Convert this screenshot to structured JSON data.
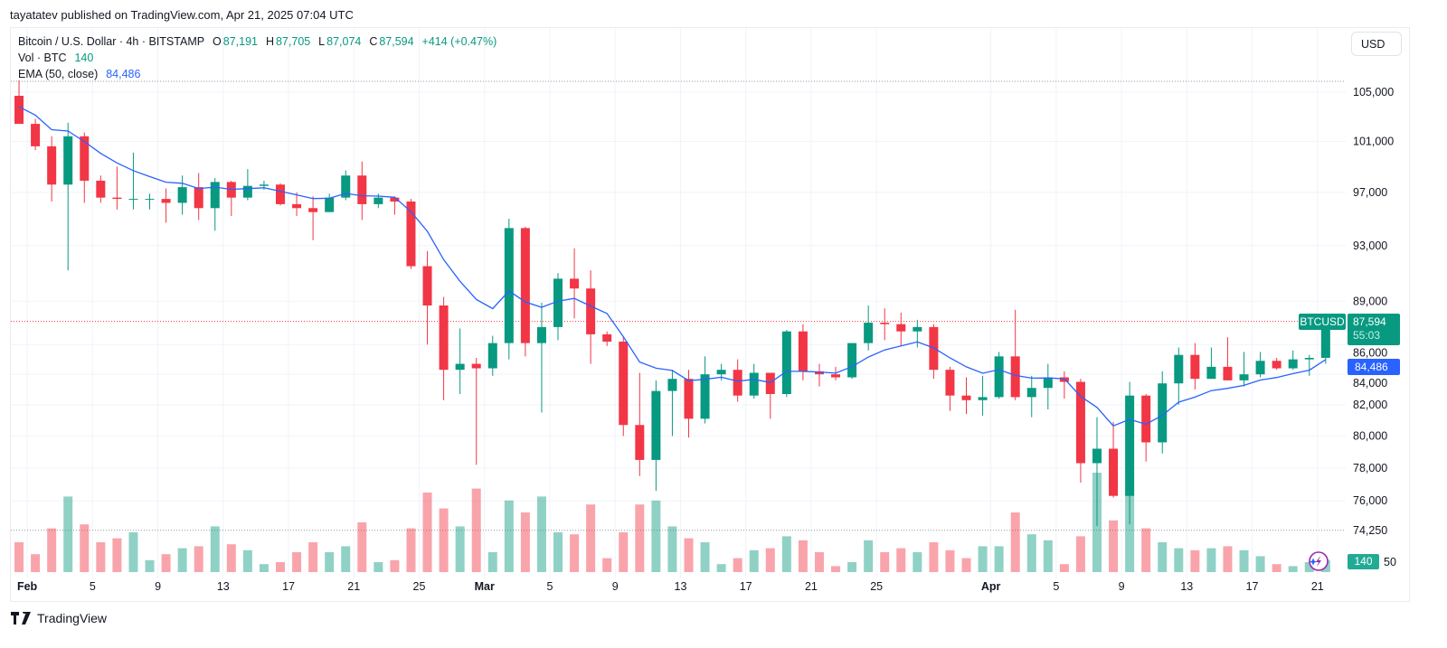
{
  "header": {
    "published": "tayatatev published on TradingView.com, Apr 21, 2025 07:04 UTC"
  },
  "legend": {
    "symbol": "Bitcoin / U.S. Dollar · 4h · BITSTAMP",
    "o_label": "O",
    "o": "87,191",
    "h_label": "H",
    "h": "87,705",
    "l_label": "L",
    "l": "87,074",
    "c_label": "C",
    "c": "87,594",
    "change": "+414 (+0.47%)",
    "vol_label": "Vol · BTC",
    "vol": "140",
    "ema_label": "EMA (50, close)",
    "ema": "84,486"
  },
  "currency_button": "USD",
  "tags": {
    "symbol": "BTCUSD",
    "last_price": "87,594",
    "countdown": "55:03",
    "ema": "84,486",
    "volume": "140"
  },
  "footer": {
    "brand": "TradingView"
  },
  "colors": {
    "up": "#089981",
    "down": "#f23645",
    "ema": "#2962ff",
    "lightning_icon": "#9c27b0"
  },
  "chart_data": {
    "type": "candlestick",
    "symbol": "BTCUSD",
    "interval": "4h",
    "scale": "log",
    "grid": true,
    "ylim": [
      74250,
      105900
    ],
    "fields": [
      "date",
      "open",
      "high",
      "low",
      "close",
      "volume"
    ],
    "candles": [
      [
        "Jan 31",
        104700,
        106000,
        102400,
        102400,
        1500
      ],
      [
        "Feb 1",
        102400,
        102800,
        100300,
        100600,
        900
      ],
      [
        "Feb 2",
        100600,
        101400,
        96300,
        97600,
        2200
      ],
      [
        "Feb 3",
        97600,
        102500,
        91200,
        101400,
        3800
      ],
      [
        "Feb 4",
        101400,
        101700,
        96200,
        97900,
        2400
      ],
      [
        "Feb 5",
        97900,
        98300,
        96200,
        96600,
        1500
      ],
      [
        "Feb 6",
        96600,
        99000,
        95700,
        96500,
        1700
      ],
      [
        "Feb 7",
        96500,
        100100,
        95700,
        96500,
        2000
      ],
      [
        "Feb 8",
        96500,
        96900,
        95700,
        96500,
        600
      ],
      [
        "Feb 9",
        96500,
        97300,
        94700,
        96200,
        900
      ],
      [
        "Feb 10",
        96200,
        98300,
        95300,
        97400,
        1200
      ],
      [
        "Feb 11",
        97400,
        98500,
        94900,
        95800,
        1300
      ],
      [
        "Feb 12",
        95800,
        98100,
        94100,
        97800,
        2300
      ],
      [
        "Feb 13",
        97800,
        97900,
        95200,
        96600,
        1400
      ],
      [
        "Feb 14",
        96600,
        98800,
        96400,
        97500,
        1100
      ],
      [
        "Feb 15",
        97500,
        97900,
        97200,
        97600,
        400
      ],
      [
        "Feb 16",
        97600,
        97700,
        96000,
        96100,
        500
      ],
      [
        "Feb 17",
        96100,
        97000,
        95200,
        95800,
        1000
      ],
      [
        "Feb 18",
        95800,
        96700,
        93400,
        95500,
        1500
      ],
      [
        "Feb 19",
        95500,
        96900,
        95500,
        96600,
        1000
      ],
      [
        "Feb 20",
        96600,
        98700,
        96400,
        98300,
        1300
      ],
      [
        "Feb 21",
        98300,
        99400,
        94900,
        96100,
        2500
      ],
      [
        "Feb 22",
        96100,
        96900,
        95800,
        96600,
        500
      ],
      [
        "Feb 23",
        96600,
        96700,
        95300,
        96300,
        600
      ],
      [
        "Feb 24",
        96300,
        96500,
        91300,
        91500,
        2200
      ],
      [
        "Feb 25",
        91500,
        92600,
        86000,
        88700,
        4000
      ],
      [
        "Feb 26",
        88700,
        89300,
        82300,
        84300,
        3200
      ],
      [
        "Feb 27",
        84300,
        87100,
        82700,
        84700,
        2300
      ],
      [
        "Feb 28",
        84700,
        85100,
        78200,
        84400,
        4200
      ],
      [
        "Mar 1",
        84400,
        86600,
        83900,
        86100,
        1000
      ],
      [
        "Mar 2",
        86100,
        95000,
        85000,
        94300,
        3600
      ],
      [
        "Mar 3",
        94300,
        94400,
        85200,
        86100,
        3000
      ],
      [
        "Mar 4",
        86100,
        88900,
        81500,
        87200,
        3800
      ],
      [
        "Mar 5",
        87200,
        91000,
        86300,
        90600,
        2000
      ],
      [
        "Mar 6",
        90600,
        92800,
        87800,
        89900,
        1900
      ],
      [
        "Mar 7",
        89900,
        91200,
        84700,
        86700,
        3400
      ],
      [
        "Mar 8",
        86700,
        86900,
        85900,
        86200,
        700
      ],
      [
        "Mar 9",
        86200,
        86500,
        80000,
        80700,
        2000
      ],
      [
        "Mar 10",
        80700,
        84100,
        77500,
        78500,
        3400
      ],
      [
        "Mar 11",
        78500,
        83600,
        76600,
        82900,
        3600
      ],
      [
        "Mar 12",
        82900,
        84300,
        80000,
        83700,
        2300
      ],
      [
        "Mar 13",
        83700,
        84300,
        79900,
        81100,
        1700
      ],
      [
        "Mar 14",
        81100,
        85200,
        80800,
        84000,
        1500
      ],
      [
        "Mar 15",
        84000,
        84700,
        83600,
        84300,
        400
      ],
      [
        "Mar 16",
        84300,
        85000,
        82200,
        82600,
        700
      ],
      [
        "Mar 17",
        82600,
        84700,
        82400,
        84100,
        1100
      ],
      [
        "Mar 18",
        84100,
        84100,
        81100,
        82700,
        1200
      ],
      [
        "Mar 19",
        82700,
        87000,
        82500,
        86900,
        1800
      ],
      [
        "Mar 20",
        86900,
        87400,
        83600,
        84200,
        1600
      ],
      [
        "Mar 21",
        84200,
        84700,
        83200,
        84000,
        1000
      ],
      [
        "Mar 22",
        84000,
        84500,
        83600,
        83800,
        300
      ],
      [
        "Mar 23",
        83800,
        86100,
        83700,
        86100,
        500
      ],
      [
        "Mar 24",
        86100,
        88700,
        85600,
        87500,
        1600
      ],
      [
        "Mar 25",
        87500,
        88500,
        86300,
        87400,
        1000
      ],
      [
        "Mar 26",
        87400,
        88200,
        85900,
        86900,
        1200
      ],
      [
        "Mar 27",
        86900,
        87700,
        85800,
        87200,
        1000
      ],
      [
        "Mar 28",
        87200,
        87400,
        83700,
        84300,
        1500
      ],
      [
        "Mar 29",
        84300,
        84500,
        81600,
        82600,
        1100
      ],
      [
        "Mar 30",
        82600,
        83800,
        81400,
        82300,
        700
      ],
      [
        "Mar 31",
        82300,
        83900,
        81300,
        82500,
        1300
      ],
      [
        "Apr 1",
        82500,
        85500,
        82400,
        85200,
        1300
      ],
      [
        "Apr 2",
        85200,
        88400,
        82300,
        82500,
        3000
      ],
      [
        "Apr 3",
        82500,
        83900,
        81200,
        83100,
        1900
      ],
      [
        "Apr 4",
        83100,
        84700,
        81700,
        83800,
        1600
      ],
      [
        "Apr 5",
        83800,
        84200,
        82400,
        83500,
        400
      ],
      [
        "Apr 6",
        83500,
        83700,
        77100,
        78300,
        1800
      ],
      [
        "Apr 7",
        78300,
        81200,
        74500,
        79200,
        5000
      ],
      [
        "Apr 8",
        79200,
        80900,
        76200,
        76300,
        2600
      ],
      [
        "Apr 9",
        76300,
        83500,
        74600,
        82600,
        4200
      ],
      [
        "Apr 10",
        82600,
        82700,
        78400,
        79600,
        2200
      ],
      [
        "Apr 11",
        79600,
        84200,
        78900,
        83400,
        1500
      ],
      [
        "Apr 12",
        83400,
        85800,
        82000,
        85300,
        1200
      ],
      [
        "Apr 13",
        85300,
        86100,
        83000,
        83700,
        1100
      ],
      [
        "Apr 14",
        83700,
        85800,
        83700,
        84500,
        1200
      ],
      [
        "Apr 15",
        84500,
        86500,
        83600,
        83600,
        1300
      ],
      [
        "Apr 16",
        83600,
        85500,
        83200,
        84000,
        1100
      ],
      [
        "Apr 17",
        84000,
        85500,
        83800,
        84900,
        800
      ],
      [
        "Apr 18",
        84900,
        85100,
        84300,
        84400,
        400
      ],
      [
        "Apr 19",
        84400,
        85600,
        84300,
        85000,
        300
      ],
      [
        "Apr 20",
        85000,
        85300,
        83900,
        85100,
        500
      ],
      [
        "Apr 21",
        85100,
        87705,
        84700,
        87594,
        600
      ]
    ],
    "y_ticks": [
      {
        "label": "105,000",
        "value": 105000
      },
      {
        "label": "101,000",
        "value": 101000
      },
      {
        "label": "97,000",
        "value": 97000
      },
      {
        "label": "93,000",
        "value": 93000
      },
      {
        "label": "89,000",
        "value": 89000
      },
      {
        "label": "86,000",
        "value": 86000
      },
      {
        "label": "84,000",
        "value": 84000
      },
      {
        "label": "82,000",
        "value": 82000
      },
      {
        "label": "80,000",
        "value": 80000
      },
      {
        "label": "78,000",
        "value": 78000
      },
      {
        "label": "76,000",
        "value": 76000
      },
      {
        "label": "74,250",
        "value": 74250
      }
    ],
    "volume_axis_label": "50",
    "x_ticks": [
      {
        "label": "Feb",
        "date": "Feb 1"
      },
      {
        "label": "5",
        "date": "Feb 5"
      },
      {
        "label": "9",
        "date": "Feb 9"
      },
      {
        "label": "13",
        "date": "Feb 13"
      },
      {
        "label": "17",
        "date": "Feb 17"
      },
      {
        "label": "21",
        "date": "Feb 21"
      },
      {
        "label": "25",
        "date": "Feb 25"
      },
      {
        "label": "Mar",
        "date": "Mar 1"
      },
      {
        "label": "5",
        "date": "Mar 5"
      },
      {
        "label": "9",
        "date": "Mar 9"
      },
      {
        "label": "13",
        "date": "Mar 13"
      },
      {
        "label": "17",
        "date": "Mar 17"
      },
      {
        "label": "21",
        "date": "Mar 21"
      },
      {
        "label": "25",
        "date": "Mar 25"
      },
      {
        "label": "Apr",
        "date": "Apr 1"
      },
      {
        "label": "5",
        "date": "Apr 5"
      },
      {
        "label": "9",
        "date": "Apr 9"
      },
      {
        "label": "13",
        "date": "Apr 13"
      },
      {
        "label": "17",
        "date": "Apr 17"
      },
      {
        "label": "21",
        "date": "Apr 21"
      }
    ],
    "indicators": [
      {
        "name": "EMA (50, close)",
        "last": 84486
      }
    ],
    "last_price": 87594
  }
}
